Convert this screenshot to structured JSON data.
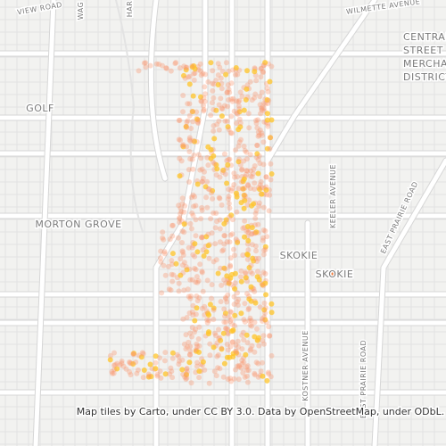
{
  "map": {
    "labels": [
      "VIEW ROAD",
      "WAG",
      "HAR",
      "WILMETTE AVENUE",
      "CENTRAL",
      "STREET",
      "MERCHANT",
      "DISTRICT",
      "GOLF",
      "MORTON GROVE",
      "SKOKIE",
      "SKOKIE",
      "KEELER AVENUE",
      "EAST PRAIRIE ROAD",
      "KOSTNER AVENUE",
      "EAST PRAIRIE ROAD"
    ],
    "attribution": "Map tiles by Carto, under CC BY 3.0. Data by OpenStreetMap, under ODbL."
  }
}
